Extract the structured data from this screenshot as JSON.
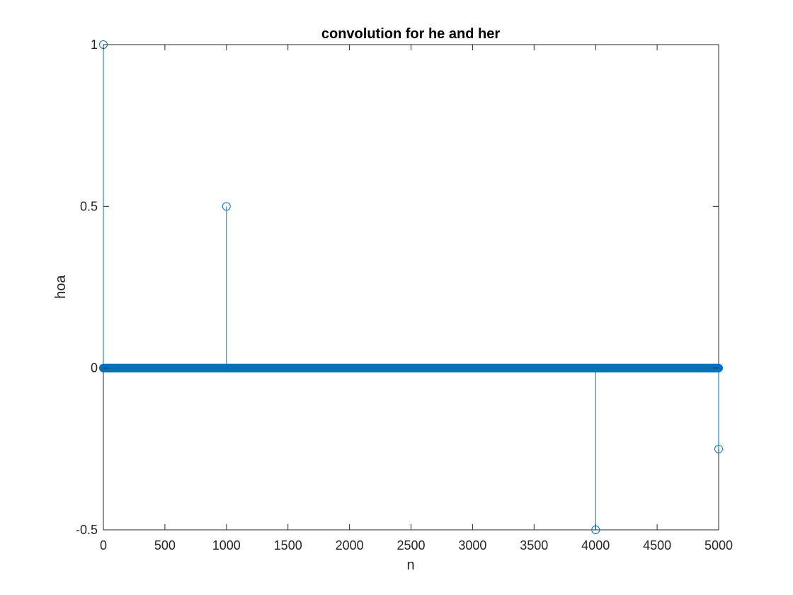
{
  "chart_data": {
    "type": "stem",
    "title": "convolution for he and her",
    "xlabel": "n",
    "ylabel": "hoa",
    "xlim": [
      0,
      5000
    ],
    "ylim": [
      -0.5,
      1
    ],
    "xticks": [
      0,
      500,
      1000,
      1500,
      2000,
      2500,
      3000,
      3500,
      4000,
      4500,
      5000
    ],
    "xtick_labels": [
      "0",
      "500",
      "1000",
      "1500",
      "2000",
      "2500",
      "3000",
      "3500",
      "4000",
      "4500",
      "5000"
    ],
    "yticks": [
      -0.5,
      0,
      0.5,
      1
    ],
    "ytick_labels": [
      "-0.5",
      "0",
      "0.5",
      "1"
    ],
    "grid": false,
    "color": "#0072BD",
    "baseline_zero_range": [
      0,
      5000
    ],
    "nonzero_points": [
      {
        "x": 0,
        "y": 1
      },
      {
        "x": 1000,
        "y": 0.5
      },
      {
        "x": 4000,
        "y": -0.5
      },
      {
        "x": 5000,
        "y": -0.25
      }
    ]
  }
}
